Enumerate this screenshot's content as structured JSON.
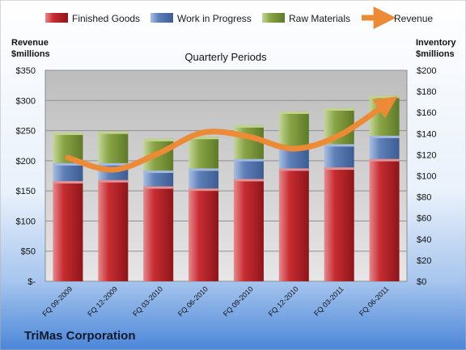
{
  "company": "TriMas Corporation",
  "chart_data": {
    "type": "bar",
    "stacked": true,
    "subtitle": "Quarterly Periods",
    "categories": [
      "FQ 09-2009",
      "FQ 12-2009",
      "FQ 03-2010",
      "FQ 06-2010",
      "FQ 09-2010",
      "FQ 12-2010",
      "FQ 03-2011",
      "FQ 06-2011"
    ],
    "left_axis": {
      "label_line1": "Revenue",
      "label_line2": "$millions",
      "min": 0,
      "max": 350,
      "step": 50,
      "tick_labels": [
        "$-",
        "$50",
        "$100",
        "$150",
        "$200",
        "$250",
        "$300",
        "$350"
      ]
    },
    "right_axis": {
      "label_line1": "Inventory",
      "label_line2": "$millions",
      "min": 0,
      "max": 200,
      "step": 20,
      "tick_labels": [
        "$0",
        "$20",
        "$40",
        "$60",
        "$80",
        "$100",
        "$120",
        "$140",
        "$160",
        "$180",
        "$200"
      ]
    },
    "series": [
      {
        "name": "Finished Goods",
        "axis": "right",
        "color": "#c0282d",
        "values": [
          95,
          96,
          90,
          88,
          97,
          107,
          108,
          116
        ]
      },
      {
        "name": "Work in Progress",
        "axis": "right",
        "color": "#5d7fb5",
        "values": [
          17,
          16,
          15,
          19,
          19,
          20,
          22,
          22
        ]
      },
      {
        "name": "Raw Materials",
        "axis": "right",
        "color": "#7f9a3f",
        "values": [
          29,
          30,
          30,
          30,
          32,
          34,
          34,
          38
        ]
      },
      {
        "name": "Revenue",
        "type": "line",
        "axis": "left",
        "color": "#ec8a35",
        "values": [
          205,
          185,
          212,
          247,
          240,
          220,
          242,
          292
        ]
      }
    ],
    "legend_position": "top",
    "grid": true
  }
}
